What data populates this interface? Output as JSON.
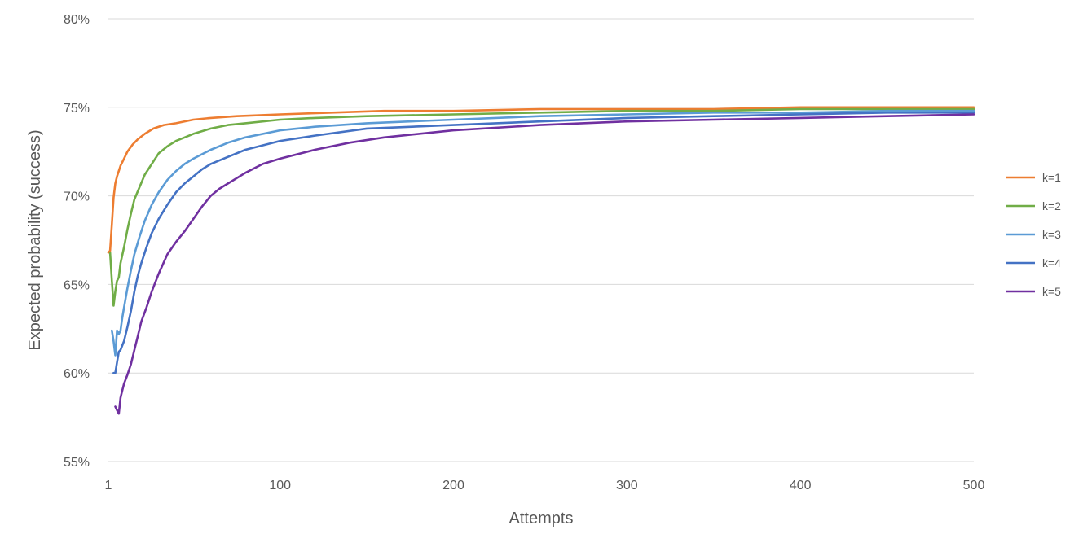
{
  "chart_data": {
    "type": "line",
    "title": "",
    "xlabel": "Attempts",
    "ylabel": "Expected probability (success)",
    "xlim": [
      1,
      500
    ],
    "ylim": [
      0.55,
      0.8
    ],
    "x_ticks": [
      1,
      100,
      200,
      300,
      400,
      500
    ],
    "x_tick_labels": [
      "1",
      "100",
      "200",
      "300",
      "400",
      "500"
    ],
    "y_ticks": [
      0.55,
      0.6,
      0.65,
      0.7,
      0.75,
      0.8
    ],
    "y_tick_labels": [
      "55%",
      "60%",
      "65%",
      "70%",
      "75%",
      "80%"
    ],
    "grid": true,
    "legend_position": "right",
    "series": [
      {
        "name": "k=1",
        "color": "#ED7D31",
        "points": [
          [
            1,
            0.668
          ],
          [
            2,
            0.669
          ],
          [
            3,
            0.684
          ],
          [
            4,
            0.699
          ],
          [
            5,
            0.707
          ],
          [
            6,
            0.711
          ],
          [
            8,
            0.717
          ],
          [
            10,
            0.721
          ],
          [
            12,
            0.725
          ],
          [
            15,
            0.729
          ],
          [
            18,
            0.732
          ],
          [
            22,
            0.735
          ],
          [
            27,
            0.738
          ],
          [
            33,
            0.74
          ],
          [
            40,
            0.741
          ],
          [
            50,
            0.743
          ],
          [
            60,
            0.744
          ],
          [
            75,
            0.745
          ],
          [
            100,
            0.746
          ],
          [
            130,
            0.747
          ],
          [
            160,
            0.748
          ],
          [
            200,
            0.748
          ],
          [
            250,
            0.749
          ],
          [
            300,
            0.749
          ],
          [
            350,
            0.749
          ],
          [
            400,
            0.75
          ],
          [
            450,
            0.75
          ],
          [
            500,
            0.75
          ]
        ]
      },
      {
        "name": "k=2",
        "color": "#70AD47",
        "points": [
          [
            2,
            0.668
          ],
          [
            3,
            0.652
          ],
          [
            4,
            0.638
          ],
          [
            5,
            0.646
          ],
          [
            6,
            0.652
          ],
          [
            7,
            0.654
          ],
          [
            8,
            0.662
          ],
          [
            10,
            0.671
          ],
          [
            12,
            0.681
          ],
          [
            14,
            0.69
          ],
          [
            16,
            0.698
          ],
          [
            19,
            0.705
          ],
          [
            22,
            0.712
          ],
          [
            26,
            0.718
          ],
          [
            30,
            0.724
          ],
          [
            35,
            0.728
          ],
          [
            40,
            0.731
          ],
          [
            45,
            0.733
          ],
          [
            50,
            0.735
          ],
          [
            60,
            0.738
          ],
          [
            70,
            0.74
          ],
          [
            80,
            0.741
          ],
          [
            100,
            0.743
          ],
          [
            120,
            0.744
          ],
          [
            150,
            0.745
          ],
          [
            200,
            0.746
          ],
          [
            250,
            0.747
          ],
          [
            300,
            0.748
          ],
          [
            350,
            0.748
          ],
          [
            400,
            0.749
          ],
          [
            450,
            0.749
          ],
          [
            500,
            0.749
          ]
        ]
      },
      {
        "name": "k=3",
        "color": "#5B9BD5",
        "points": [
          [
            3,
            0.624
          ],
          [
            4,
            0.618
          ],
          [
            5,
            0.61
          ],
          [
            6,
            0.624
          ],
          [
            7,
            0.622
          ],
          [
            8,
            0.624
          ],
          [
            9,
            0.631
          ],
          [
            10,
            0.637
          ],
          [
            12,
            0.648
          ],
          [
            14,
            0.658
          ],
          [
            16,
            0.667
          ],
          [
            19,
            0.677
          ],
          [
            22,
            0.686
          ],
          [
            26,
            0.695
          ],
          [
            30,
            0.702
          ],
          [
            35,
            0.709
          ],
          [
            40,
            0.714
          ],
          [
            45,
            0.718
          ],
          [
            50,
            0.721
          ],
          [
            60,
            0.726
          ],
          [
            70,
            0.73
          ],
          [
            80,
            0.733
          ],
          [
            100,
            0.737
          ],
          [
            120,
            0.739
          ],
          [
            150,
            0.741
          ],
          [
            200,
            0.743
          ],
          [
            250,
            0.745
          ],
          [
            300,
            0.746
          ],
          [
            350,
            0.747
          ],
          [
            400,
            0.747
          ],
          [
            450,
            0.748
          ],
          [
            500,
            0.748
          ]
        ]
      },
      {
        "name": "k=4",
        "color": "#4472C4",
        "points": [
          [
            4,
            0.6
          ],
          [
            5,
            0.6
          ],
          [
            6,
            0.606
          ],
          [
            7,
            0.612
          ],
          [
            8,
            0.613
          ],
          [
            10,
            0.618
          ],
          [
            12,
            0.626
          ],
          [
            14,
            0.635
          ],
          [
            16,
            0.646
          ],
          [
            18,
            0.655
          ],
          [
            20,
            0.662
          ],
          [
            23,
            0.671
          ],
          [
            26,
            0.679
          ],
          [
            30,
            0.687
          ],
          [
            35,
            0.695
          ],
          [
            40,
            0.702
          ],
          [
            45,
            0.707
          ],
          [
            50,
            0.711
          ],
          [
            55,
            0.715
          ],
          [
            60,
            0.718
          ],
          [
            70,
            0.722
          ],
          [
            80,
            0.726
          ],
          [
            100,
            0.731
          ],
          [
            120,
            0.734
          ],
          [
            150,
            0.738
          ],
          [
            200,
            0.74
          ],
          [
            250,
            0.742
          ],
          [
            300,
            0.744
          ],
          [
            350,
            0.745
          ],
          [
            400,
            0.746
          ],
          [
            450,
            0.747
          ],
          [
            500,
            0.747
          ]
        ]
      },
      {
        "name": "k=5",
        "color": "#7030A0",
        "points": [
          [
            5,
            0.581
          ],
          [
            6,
            0.579
          ],
          [
            7,
            0.577
          ],
          [
            8,
            0.586
          ],
          [
            9,
            0.59
          ],
          [
            10,
            0.594
          ],
          [
            12,
            0.599
          ],
          [
            14,
            0.605
          ],
          [
            16,
            0.613
          ],
          [
            18,
            0.621
          ],
          [
            20,
            0.629
          ],
          [
            23,
            0.637
          ],
          [
            26,
            0.646
          ],
          [
            30,
            0.656
          ],
          [
            35,
            0.667
          ],
          [
            40,
            0.674
          ],
          [
            45,
            0.68
          ],
          [
            50,
            0.687
          ],
          [
            55,
            0.694
          ],
          [
            60,
            0.7
          ],
          [
            65,
            0.704
          ],
          [
            70,
            0.707
          ],
          [
            80,
            0.713
          ],
          [
            90,
            0.718
          ],
          [
            100,
            0.721
          ],
          [
            120,
            0.726
          ],
          [
            140,
            0.73
          ],
          [
            160,
            0.733
          ],
          [
            200,
            0.737
          ],
          [
            250,
            0.74
          ],
          [
            300,
            0.742
          ],
          [
            350,
            0.743
          ],
          [
            400,
            0.744
          ],
          [
            450,
            0.745
          ],
          [
            500,
            0.746
          ]
        ]
      }
    ]
  }
}
